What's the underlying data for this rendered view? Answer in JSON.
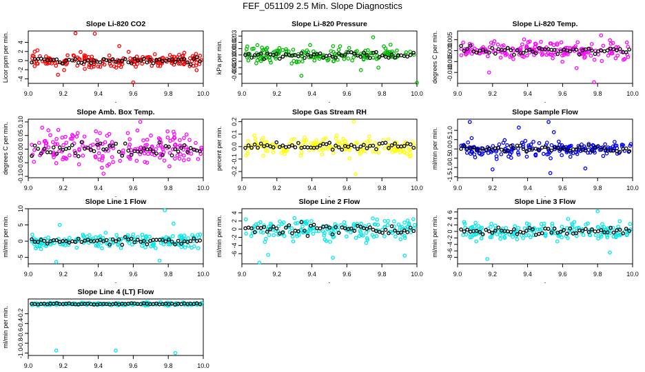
{
  "title": "FEF_051109  2.5 Min. Slope Diagnostics",
  "chart_data": [
    {
      "type": "scatter",
      "title": "Slope Li-820 CO2",
      "ylabel": "Licor ppm per min.",
      "xlim": [
        9.0,
        10.0
      ],
      "ylim": [
        -5,
        6.5
      ],
      "xticks": [
        9.0,
        9.2,
        9.4,
        9.6,
        9.8,
        10.0
      ],
      "xtick_labels": [
        "9.0",
        "9.2",
        "9.4",
        "9.6",
        "9.8",
        "10.0"
      ],
      "yticks": [
        -4,
        -2,
        0,
        2,
        4
      ],
      "ytick_labels": [
        "-4",
        "-2",
        "0",
        "2",
        "4"
      ],
      "color": "#ff0000",
      "spread": 1.2,
      "outliers": [
        [
          9.27,
          6.0
        ],
        [
          9.38,
          5.9
        ],
        [
          9.6,
          -4.8
        ],
        [
          9.17,
          -3.1
        ],
        [
          9.52,
          3.2
        ]
      ],
      "seed": 11
    },
    {
      "type": "scatter",
      "title": "Slope Li-820 Pressure",
      "ylabel": "kPa per min.",
      "xlim": [
        9.0,
        10.0
      ],
      "ylim": [
        -0.045,
        0.038
      ],
      "xticks": [
        9.0,
        9.2,
        9.4,
        9.6,
        9.8,
        10.0
      ],
      "xtick_labels": [
        "9.0",
        "9.2",
        "9.4",
        "9.6",
        "9.8",
        "10.0"
      ],
      "yticks": [
        -0.03,
        -0.02,
        -0.01,
        0.0,
        0.01,
        0.02,
        0.03
      ],
      "ytick_labels": [
        "-0.03",
        "-0.02",
        "-0.01",
        "0.00",
        "0.01",
        "0.02",
        "0.03"
      ],
      "color": "#00bb00",
      "spread": 0.009,
      "outliers": [
        [
          9.34,
          -0.033
        ],
        [
          10.0,
          -0.044
        ],
        [
          9.68,
          -0.024
        ],
        [
          9.75,
          0.028
        ],
        [
          9.78,
          -0.02
        ]
      ],
      "seed": 23
    },
    {
      "type": "scatter",
      "title": "Slope Li-820 Temp.",
      "ylabel": "degrees C per min.",
      "xlim": [
        9.0,
        10.0
      ],
      "ylim": [
        -0.015,
        0.009
      ],
      "xticks": [
        9.0,
        9.2,
        9.4,
        9.6,
        9.8,
        10.0
      ],
      "xtick_labels": [
        "9.0",
        "9.2",
        "9.4",
        "9.6",
        "9.8",
        "10.0"
      ],
      "yticks": [
        -0.01,
        -0.005,
        0.0,
        0.005
      ],
      "ytick_labels": [
        "-0.010",
        "-0.005",
        "0.000",
        "0.005"
      ],
      "color": "#ff00ff",
      "spread": 0.0028,
      "outliers": [
        [
          9.18,
          -0.01
        ],
        [
          9.78,
          -0.0145
        ],
        [
          9.68,
          -0.008
        ],
        [
          9.82,
          0.007
        ]
      ],
      "seed": 37
    },
    {
      "type": "scatter",
      "title": "Slope Amb. Box Temp.",
      "ylabel": "degrees C per min.",
      "xlim": [
        9.0,
        10.0
      ],
      "ylim": [
        -0.105,
        0.11
      ],
      "xticks": [
        9.0,
        9.2,
        9.4,
        9.6,
        9.8,
        10.0
      ],
      "xtick_labels": [
        "9.0",
        "9.2",
        "9.4",
        "9.6",
        "9.8",
        "10.0"
      ],
      "yticks": [
        -0.1,
        -0.05,
        0.0,
        0.05,
        0.1
      ],
      "ytick_labels": [
        "-0.10",
        "-0.05",
        "0.00",
        "0.05",
        "0.10"
      ],
      "color": "#ff00ff",
      "spread": 0.045,
      "outliers": [
        [
          9.64,
          0.1
        ],
        [
          9.43,
          -0.09
        ]
      ],
      "seed": 41
    },
    {
      "type": "scatter",
      "title": "Slope Gas Stream RH",
      "ylabel": "percent per min.",
      "xlim": [
        9.0,
        10.0
      ],
      "ylim": [
        -0.25,
        0.22
      ],
      "xticks": [
        9.0,
        9.2,
        9.4,
        9.6,
        9.8,
        10.0
      ],
      "xtick_labels": [
        "9.0",
        "9.2",
        "9.4",
        "9.6",
        "9.8",
        "10.0"
      ],
      "yticks": [
        -0.2,
        -0.1,
        0.0,
        0.1,
        0.2
      ],
      "ytick_labels": [
        "-0.2",
        "-0.1",
        "0.0",
        "0.1",
        "0.2"
      ],
      "color": "#ffff00",
      "spread": 0.05,
      "outliers": [
        [
          9.64,
          0.2
        ],
        [
          9.65,
          -0.22
        ]
      ],
      "seed": 53
    },
    {
      "type": "scatter",
      "title": "Slope Sample Flow",
      "ylabel": "ml/min per min.",
      "xlim": [
        9.0,
        10.0
      ],
      "ylim": [
        -1.55,
        1.6
      ],
      "xticks": [
        9.0,
        9.2,
        9.4,
        9.6,
        9.8,
        10.0
      ],
      "xtick_labels": [
        "9.0",
        "9.2",
        "9.4",
        "9.6",
        "9.8",
        "10.0"
      ],
      "yticks": [
        -1.5,
        -1.0,
        -0.5,
        0.0,
        0.5,
        1.0
      ],
      "ytick_labels": [
        "-1.5",
        "-1.0",
        "-0.5",
        "0.0",
        "0.5",
        "1.0"
      ],
      "color": "#0000ff",
      "spread": 0.3,
      "outliers": [
        [
          9.07,
          1.45
        ],
        [
          9.35,
          1.15
        ],
        [
          9.52,
          1.45
        ],
        [
          9.53,
          -1.3
        ],
        [
          9.2,
          -1.1
        ],
        [
          9.73,
          -1.05
        ],
        [
          9.55,
          0.9
        ]
      ],
      "seed": 67
    },
    {
      "type": "scatter",
      "title": "Slope Line 1 Flow",
      "ylabel": "ml/min per min.",
      "xlim": [
        9.0,
        10.0
      ],
      "ylim": [
        -7,
        10
      ],
      "xticks": [
        9.0,
        9.2,
        9.4,
        9.6,
        9.8,
        10.0
      ],
      "xtick_labels": [
        "9.0",
        "9.2",
        "9.4",
        "9.6",
        "9.8",
        "10.0"
      ],
      "yticks": [
        -5,
        0,
        5,
        10
      ],
      "ytick_labels": [
        "-5",
        "0",
        "5",
        "10"
      ],
      "color": "#00e8e8",
      "spread": 1.6,
      "outliers": [
        [
          9.78,
          9.5
        ],
        [
          9.83,
          5.4
        ],
        [
          9.16,
          -6.4
        ],
        [
          9.75,
          -6.0
        ],
        [
          9.18,
          5.0
        ]
      ],
      "seed": 79
    },
    {
      "type": "scatter",
      "title": "Slope Line 2 Flow",
      "ylabel": "ml/min per min.",
      "xlim": [
        9.0,
        10.0
      ],
      "ylim": [
        -8.5,
        5
      ],
      "xticks": [
        9.0,
        9.2,
        9.4,
        9.6,
        9.8,
        10.0
      ],
      "xtick_labels": [
        "9.0",
        "9.2",
        "9.4",
        "9.6",
        "9.8",
        "10.0"
      ],
      "yticks": [
        -6,
        -4,
        -2,
        0,
        2,
        4
      ],
      "ytick_labels": [
        "-6",
        "-4",
        "-2",
        "0",
        "2",
        "4"
      ],
      "color": "#00e8e8",
      "spread": 1.9,
      "outliers": [
        [
          9.1,
          -8.2
        ],
        [
          9.52,
          -7.0
        ],
        [
          9.93,
          -6.5
        ],
        [
          9.15,
          -6.3
        ]
      ],
      "seed": 83
    },
    {
      "type": "scatter",
      "title": "Slope Line 3 Flow",
      "ylabel": "ml/min per min.",
      "xlim": [
        9.0,
        10.0
      ],
      "ylim": [
        -10,
        7
      ],
      "xticks": [
        9.0,
        9.2,
        9.4,
        9.6,
        9.8,
        10.0
      ],
      "xtick_labels": [
        "9.0",
        "9.2",
        "9.4",
        "9.6",
        "9.8",
        "10.0"
      ],
      "yticks": [
        -8,
        -6,
        -4,
        -2,
        0,
        2,
        4,
        6
      ],
      "ytick_labels": [
        "-8",
        "-6",
        "-4",
        "-2",
        "0",
        "2",
        "4",
        "6"
      ],
      "color": "#00e8e8",
      "spread": 1.8,
      "outliers": [
        [
          9.17,
          -8.5
        ],
        [
          9.8,
          6.2
        ],
        [
          9.87,
          -6.5
        ]
      ],
      "seed": 97
    },
    {
      "type": "scatter",
      "title": "Slope Line 4 (LT) Flow",
      "ylabel": "ml/min per min.",
      "xlim": [
        9.0,
        10.0
      ],
      "ylim": [
        -1.05,
        0.1
      ],
      "xticks": [
        9.0,
        9.2,
        9.4,
        9.6,
        9.8,
        10.0
      ],
      "xtick_labels": [
        "9.0",
        "9.2",
        "9.4",
        "9.6",
        "9.8",
        "10.0"
      ],
      "yticks": [
        -1.0,
        -0.8,
        -0.6,
        -0.4,
        -0.2
      ],
      "ytick_labels": [
        "-1.0",
        "-0.8",
        "-0.6",
        "-0.4",
        "-0.2"
      ],
      "color": "#00e8e8",
      "spread": 0.02,
      "outliers": [
        [
          9.16,
          -0.95
        ],
        [
          9.5,
          -0.95
        ],
        [
          9.84,
          -1.0
        ]
      ],
      "seed": 101
    }
  ]
}
